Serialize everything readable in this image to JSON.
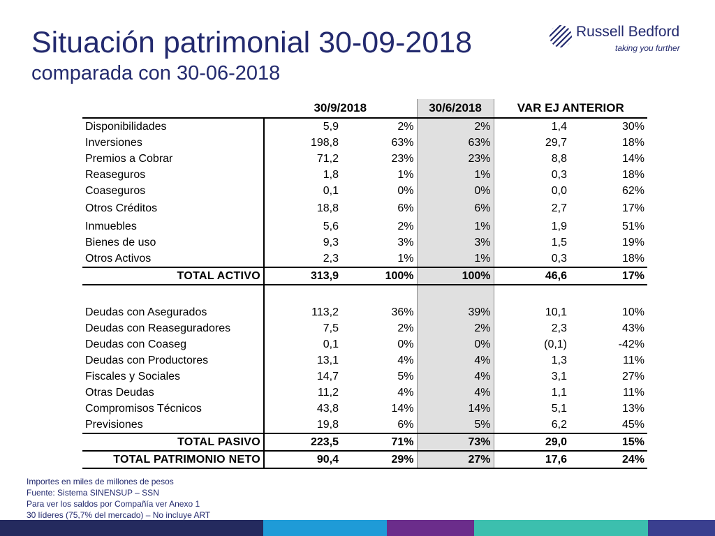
{
  "header": {
    "title": "Situación patrimonial 30-09-2018",
    "subtitle": "comparada con 30-06-2018"
  },
  "logo": {
    "name": "Russell Bedford",
    "tagline": "taking you further"
  },
  "table": {
    "headers": [
      "30/9/2018",
      "30/6/2018",
      "VAR EJ ANTERIOR"
    ],
    "activo_rows": [
      {
        "label": "Disponibilidades",
        "v1": "5,9",
        "p1": "2%",
        "p2": "2%",
        "var": "1,4",
        "varp": "30%"
      },
      {
        "label": "Inversiones",
        "v1": "198,8",
        "p1": "63%",
        "p2": "63%",
        "var": "29,7",
        "varp": "18%"
      },
      {
        "label": "Premios a Cobrar",
        "v1": "71,2",
        "p1": "23%",
        "p2": "23%",
        "var": "8,8",
        "varp": "14%"
      },
      {
        "label": "Reaseguros",
        "v1": "1,8",
        "p1": "1%",
        "p2": "1%",
        "var": "0,3",
        "varp": "18%"
      },
      {
        "label": "Coaseguros",
        "v1": "0,1",
        "p1": "0%",
        "p2": "0%",
        "var": "0,0",
        "varp": "62%"
      },
      {
        "label": "Otros Créditos",
        "v1": "18,8",
        "p1": "6%",
        "p2": "6%",
        "var": "2,7",
        "varp": "17%"
      },
      {
        "label": "Inmuebles",
        "v1": "5,6",
        "p1": "2%",
        "p2": "1%",
        "var": "1,9",
        "varp": "51%"
      },
      {
        "label": "Bienes de uso",
        "v1": "9,3",
        "p1": "3%",
        "p2": "3%",
        "var": "1,5",
        "varp": "19%"
      },
      {
        "label": "Otros Activos",
        "v1": "2,3",
        "p1": "1%",
        "p2": "1%",
        "var": "0,3",
        "varp": "18%"
      }
    ],
    "total_activo": {
      "label": "TOTAL ACTIVO",
      "v1": "313,9",
      "p1": "100%",
      "p2": "100%",
      "var": "46,6",
      "varp": "17%"
    },
    "pasivo_rows": [
      {
        "label": "Deudas con Asegurados",
        "v1": "113,2",
        "p1": "36%",
        "p2": "39%",
        "var": "10,1",
        "varp": "10%"
      },
      {
        "label": "Deudas con Reaseguradores",
        "v1": "7,5",
        "p1": "2%",
        "p2": "2%",
        "var": "2,3",
        "varp": "43%"
      },
      {
        "label": "Deudas con Coaseg",
        "v1": "0,1",
        "p1": "0%",
        "p2": "0%",
        "var": "(0,1)",
        "varp": "-42%"
      },
      {
        "label": "Deudas con Productores",
        "v1": "13,1",
        "p1": "4%",
        "p2": "4%",
        "var": "1,3",
        "varp": "11%"
      },
      {
        "label": "Fiscales y Sociales",
        "v1": "14,7",
        "p1": "5%",
        "p2": "4%",
        "var": "3,1",
        "varp": "27%"
      },
      {
        "label": "Otras Deudas",
        "v1": "11,2",
        "p1": "4%",
        "p2": "4%",
        "var": "1,1",
        "varp": "11%"
      },
      {
        "label": "Compromisos Técnicos",
        "v1": "43,8",
        "p1": "14%",
        "p2": "14%",
        "var": "5,1",
        "varp": "13%"
      },
      {
        "label": "Previsiones",
        "v1": "19,8",
        "p1": "6%",
        "p2": "5%",
        "var": "6,2",
        "varp": "45%"
      }
    ],
    "total_pasivo": {
      "label": "TOTAL PASIVO",
      "v1": "223,5",
      "p1": "71%",
      "p2": "73%",
      "var": "29,0",
      "varp": "15%"
    },
    "total_patrimonio": {
      "label": "TOTAL PATRIMONIO NETO",
      "v1": "90,4",
      "p1": "29%",
      "p2": "27%",
      "var": "17,6",
      "varp": "24%"
    }
  },
  "notes": [
    "Importes en miles de millones de pesos",
    "Fuente: Sistema SINENSUP – SSN",
    "Para ver los saldos por Compañía ver Anexo 1",
    "30 líderes (75,7% del mercado) – No incluye ART"
  ],
  "colors": {
    "title": "#232a6e",
    "bar": [
      "#242a5e",
      "#1f9bd7",
      "#6b2d8b",
      "#3cbfae",
      "#3a3f8f"
    ]
  }
}
